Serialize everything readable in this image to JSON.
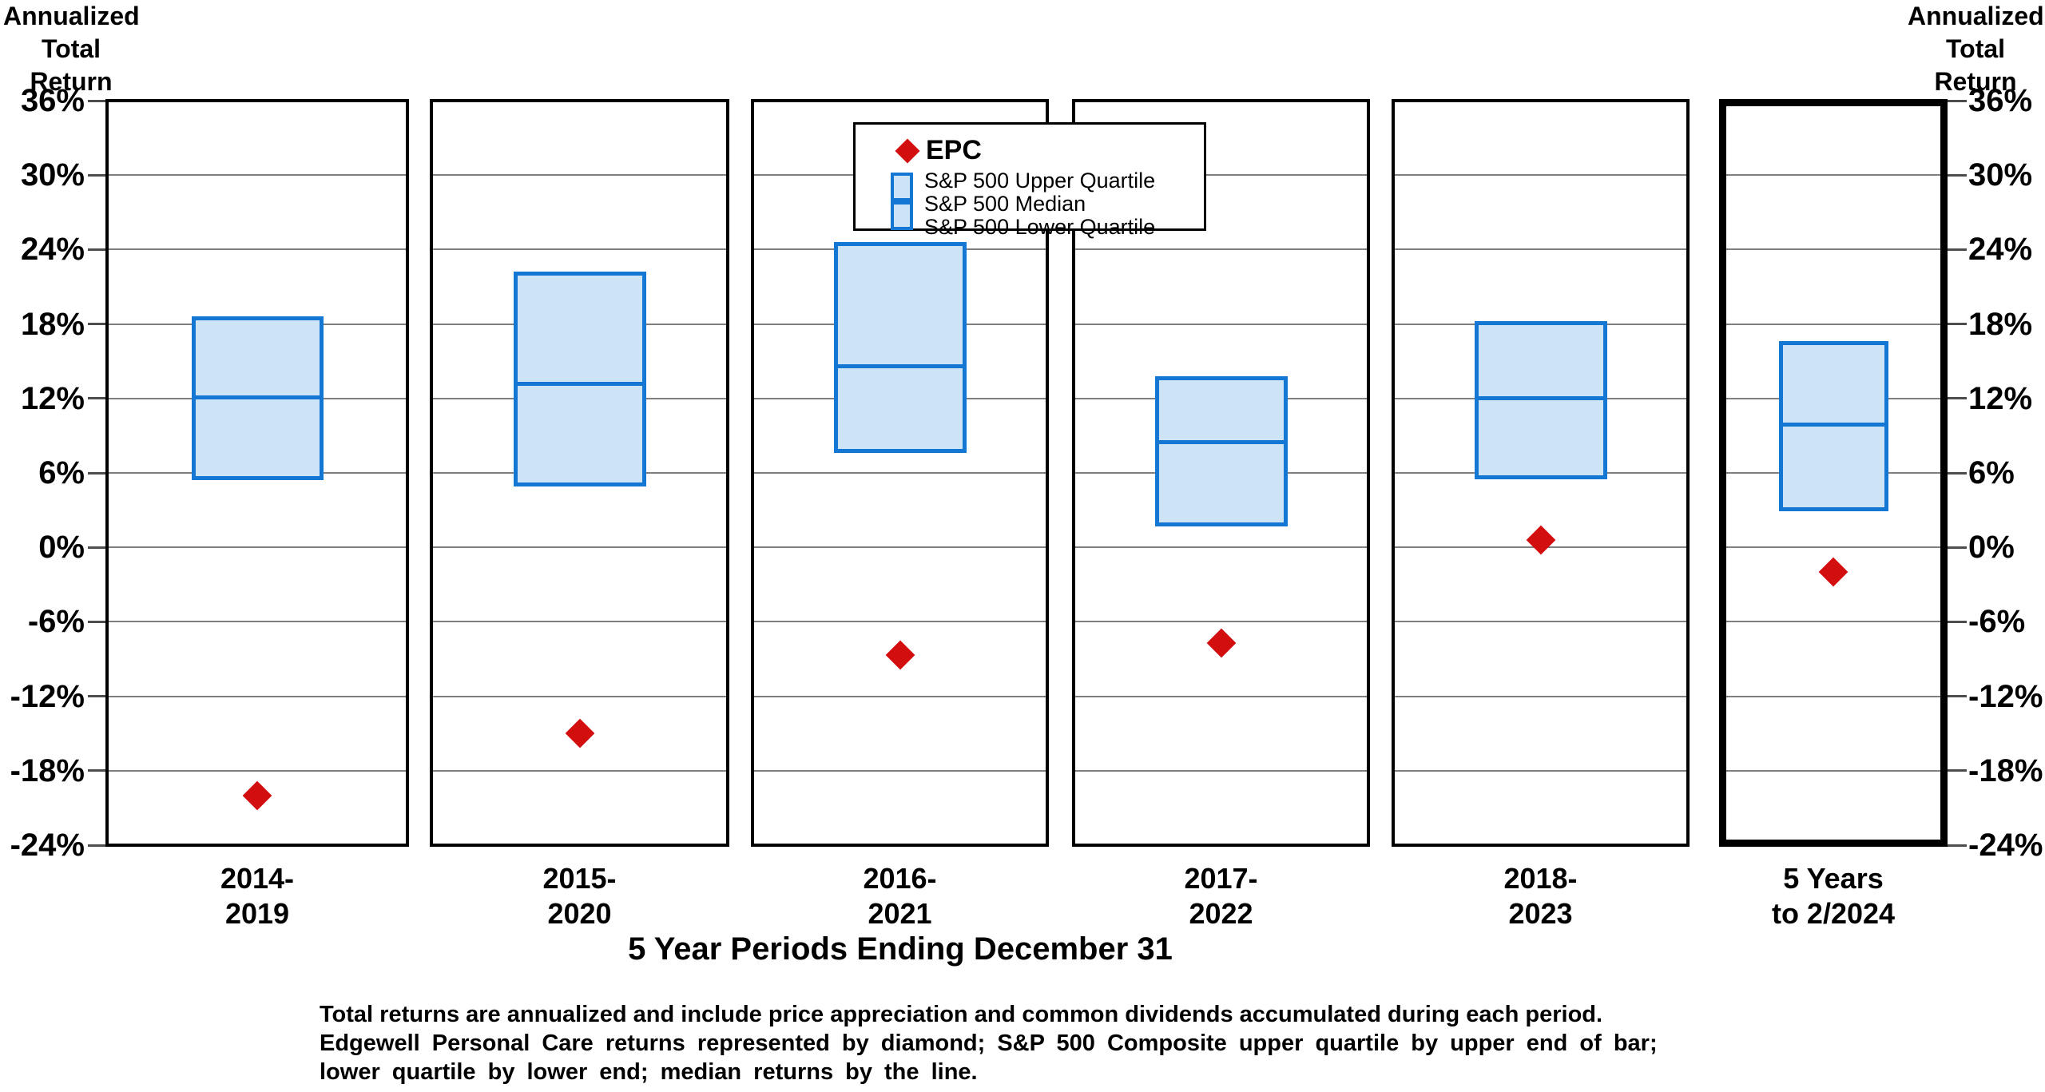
{
  "axis": {
    "title_lines": [
      "Annualized",
      "Total",
      "Return"
    ]
  },
  "legend": {
    "epc_label": "EPC",
    "items": [
      "S&P 500 Upper Quartile",
      "S&P 500 Median",
      "S&P 500 Lower Quartile"
    ]
  },
  "footnote": {
    "lines": [
      "Total returns are annualized and include price appreciation and common dividends accumulated during each period.",
      "Edgewell Personal Care returns represented by diamond; S&P 500 Composite upper quartile by upper end of bar;",
      "lower quartile by lower end; median returns by the line."
    ]
  },
  "chart_data": {
    "type": "box-and-marker",
    "title": "",
    "xlabel": "5 Year Periods Ending December 31",
    "ylabel": "Annualized Total Return",
    "ylim": [
      -24,
      36
    ],
    "grid": true,
    "legend_position": "top-center",
    "yticks": [
      36,
      30,
      24,
      18,
      12,
      6,
      0,
      -6,
      -12,
      -18,
      -24
    ],
    "ytick_labels": [
      "36%",
      "30%",
      "24%",
      "18%",
      "12%",
      "6%",
      "0%",
      "-6%",
      "-12%",
      "-18%",
      "-24%"
    ],
    "categories": [
      "2014-2019",
      "2015-2020",
      "2016-2021",
      "2017-2022",
      "2018-2023",
      "5 Years to 2/2024"
    ],
    "category_label_lines": [
      [
        "2014-",
        "2019"
      ],
      [
        "2015-",
        "2020"
      ],
      [
        "2016-",
        "2021"
      ],
      [
        "2017-",
        "2022"
      ],
      [
        "2018-",
        "2023"
      ],
      [
        "5 Years",
        "to  2/2024"
      ]
    ],
    "series": [
      {
        "name": "EPC",
        "style": "diamond-marker",
        "values": [
          -20.0,
          -15.0,
          -8.7,
          -7.7,
          0.6,
          -2.0
        ]
      },
      {
        "name": "S&P 500 Upper Quartile",
        "style": "box-top",
        "values": [
          18.6,
          22.2,
          24.6,
          13.8,
          18.2,
          16.6
        ]
      },
      {
        "name": "S&P 500 Median",
        "style": "box-median-line",
        "values": [
          12.1,
          13.2,
          14.6,
          8.5,
          12.0,
          9.9
        ]
      },
      {
        "name": "S&P 500 Lower Quartile",
        "style": "box-bottom",
        "values": [
          5.4,
          4.9,
          7.6,
          1.7,
          5.5,
          2.9
        ]
      }
    ],
    "colors": {
      "box_fill": "#CDE4F7",
      "box_border": "#1577D4",
      "marker": "#D30E0E",
      "gridline": "#7F7F7F",
      "panel_border": "#000000"
    }
  }
}
